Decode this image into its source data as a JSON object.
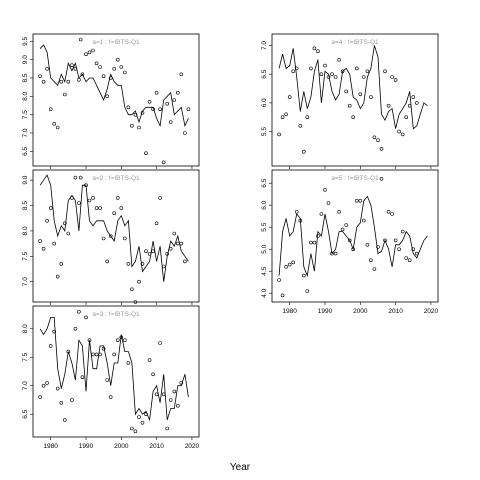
{
  "chart_data": [
    {
      "type": "line",
      "title": "a=1 : f=IBTS-Q1",
      "xlabel": "Year",
      "ylim": [
        6.1,
        9.7
      ],
      "xlim": [
        1975,
        2022
      ],
      "x_ticks": [
        1980,
        1990,
        2000,
        2010,
        2020
      ],
      "y_ticks": [
        6.5,
        7.0,
        7.5,
        8.0,
        8.5,
        9.0,
        9.5
      ],
      "x": [
        1977,
        1978,
        1979,
        1980,
        1981,
        1982,
        1983,
        1984,
        1985,
        1986,
        1987,
        1988,
        1989,
        1990,
        1991,
        1992,
        1993,
        1994,
        1995,
        1996,
        1997,
        1998,
        1999,
        2000,
        2001,
        2002,
        2003,
        2004,
        2005,
        2006,
        2007,
        2008,
        2009,
        2010,
        2011,
        2012,
        2013,
        2014,
        2015,
        2016,
        2017,
        2018,
        2019
      ],
      "line": [
        9.3,
        9.4,
        9.2,
        8.5,
        8.4,
        8.3,
        8.6,
        8.4,
        8.9,
        8.7,
        8.9,
        8.5,
        8.6,
        8.4,
        8.5,
        8.5,
        8.3,
        8.1,
        7.9,
        8.2,
        8.6,
        8.4,
        8.3,
        8.3,
        7.7,
        7.5,
        7.5,
        7.6,
        7.3,
        7.6,
        7.7,
        7.7,
        7.7,
        7.4,
        7.2,
        7.9,
        8.0,
        8.1,
        7.5,
        7.6,
        7.7,
        7.2,
        7.4
      ],
      "points": [
        [
          1977,
          8.55
        ],
        [
          1978,
          8.4
        ],
        [
          1979,
          8.75
        ],
        [
          1980,
          7.65
        ],
        [
          1981,
          7.25
        ],
        [
          1982,
          7.15
        ],
        [
          1983,
          8.4
        ],
        [
          1984,
          8.05
        ],
        [
          1985,
          8.4
        ],
        [
          1986,
          8.85
        ],
        [
          1987,
          8.75
        ],
        [
          1988,
          8.45
        ],
        [
          1988.5,
          9.55
        ],
        [
          1989,
          8.6
        ],
        [
          1990,
          9.15
        ],
        [
          1991,
          9.2
        ],
        [
          1992,
          9.25
        ],
        [
          1993,
          8.9
        ],
        [
          1994,
          8.8
        ],
        [
          1995,
          8.55
        ],
        [
          1996,
          8.0
        ],
        [
          1997,
          8.5
        ],
        [
          1998,
          8.75
        ],
        [
          1999,
          9.0
        ],
        [
          2000,
          8.8
        ],
        [
          2001,
          8.65
        ],
        [
          2002,
          7.7
        ],
        [
          2003,
          7.2
        ],
        [
          2004,
          7.5
        ],
        [
          2005,
          7.15
        ],
        [
          2006,
          7.55
        ],
        [
          2007,
          6.45
        ],
        [
          2008,
          7.85
        ],
        [
          2009,
          7.65
        ],
        [
          2010,
          8.1
        ],
        [
          2011,
          7.65
        ],
        [
          2012,
          6.2
        ],
        [
          2013,
          7.8
        ],
        [
          2014,
          7.3
        ],
        [
          2015,
          7.9
        ],
        [
          2016,
          8.1
        ],
        [
          2017,
          8.6
        ],
        [
          2018,
          7.0
        ],
        [
          2019,
          7.65
        ]
      ]
    },
    {
      "type": "line",
      "title": "a=2 : f=IBTS-Q1",
      "xlabel": "Year",
      "ylim": [
        6.6,
        9.2
      ],
      "xlim": [
        1975,
        2022
      ],
      "x_ticks": [
        1980,
        1990,
        2000,
        2010,
        2020
      ],
      "y_ticks": [
        7.0,
        7.5,
        8.0,
        8.5,
        9.0
      ],
      "x": [
        1977,
        1978,
        1979,
        1980,
        1981,
        1982,
        1983,
        1984,
        1985,
        1986,
        1987,
        1988,
        1989,
        1990,
        1991,
        1992,
        1993,
        1994,
        1995,
        1996,
        1997,
        1998,
        1999,
        2000,
        2001,
        2002,
        2003,
        2004,
        2005,
        2006,
        2007,
        2008,
        2009,
        2010,
        2011,
        2012,
        2013,
        2014,
        2015,
        2016,
        2017,
        2018,
        2019
      ],
      "line": [
        8.9,
        9.0,
        9.1,
        8.9,
        8.2,
        7.9,
        8.1,
        8.0,
        8.6,
        8.7,
        8.6,
        8.0,
        8.9,
        8.9,
        8.2,
        8.1,
        8.2,
        8.2,
        8.2,
        8.0,
        7.9,
        7.8,
        8.2,
        8.3,
        8.1,
        8.2,
        7.3,
        7.4,
        7.7,
        7.2,
        7.3,
        7.4,
        7.8,
        7.4,
        7.7,
        7.0,
        7.5,
        7.8,
        7.7,
        7.9,
        7.6,
        7.5,
        7.4
      ],
      "points": [
        [
          1977,
          7.8
        ],
        [
          1978,
          7.65
        ],
        [
          1979,
          8.2
        ],
        [
          1980,
          8.45
        ],
        [
          1981,
          7.75
        ],
        [
          1982,
          7.1
        ],
        [
          1983,
          7.35
        ],
        [
          1984,
          8.15
        ],
        [
          1985,
          7.95
        ],
        [
          1986,
          8.65
        ],
        [
          1987,
          9.05
        ],
        [
          1988,
          8.55
        ],
        [
          1988.5,
          9.05
        ],
        [
          1990,
          8.9
        ],
        [
          1991,
          8.6
        ],
        [
          1992,
          8.65
        ],
        [
          1993,
          8.45
        ],
        [
          1994,
          8.45
        ],
        [
          1995,
          7.85
        ],
        [
          1996,
          7.4
        ],
        [
          1997,
          7.9
        ],
        [
          1998,
          8.35
        ],
        [
          1999,
          8.65
        ],
        [
          2000,
          8.45
        ],
        [
          2001,
          7.85
        ],
        [
          2002,
          7.35
        ],
        [
          2003,
          6.85
        ],
        [
          2004,
          6.6
        ],
        [
          2005,
          7.0
        ],
        [
          2006,
          7.35
        ],
        [
          2007,
          7.6
        ],
        [
          2008,
          7.55
        ],
        [
          2009,
          7.6
        ],
        [
          2010,
          8.15
        ],
        [
          2011,
          8.65
        ],
        [
          2012,
          7.3
        ],
        [
          2013,
          7.55
        ],
        [
          2014,
          7.65
        ],
        [
          2015,
          7.95
        ],
        [
          2016,
          7.75
        ],
        [
          2017,
          7.75
        ],
        [
          2018,
          7.4
        ]
      ]
    },
    {
      "type": "line",
      "title": "a=3 : f=IBTS-Q1",
      "xlabel": "Year",
      "ylim": [
        6.1,
        8.4
      ],
      "xlim": [
        1975,
        2022
      ],
      "x_ticks": [
        1980,
        1990,
        2000,
        2010,
        2020
      ],
      "y_ticks": [
        6.5,
        7.0,
        7.5,
        8.0
      ],
      "x": [
        1977,
        1978,
        1979,
        1980,
        1981,
        1982,
        1983,
        1984,
        1985,
        1986,
        1987,
        1988,
        1989,
        1990,
        1991,
        1992,
        1993,
        1994,
        1995,
        1996,
        1997,
        1998,
        1999,
        2000,
        2001,
        2002,
        2003,
        2004,
        2005,
        2006,
        2007,
        2008,
        2009,
        2010,
        2011,
        2012,
        2013,
        2014,
        2015,
        2016,
        2017,
        2018,
        2019
      ],
      "line": [
        8.0,
        7.9,
        8.0,
        8.2,
        8.2,
        7.3,
        6.95,
        7.2,
        7.6,
        7.4,
        7.1,
        7.8,
        7.7,
        6.9,
        7.8,
        7.3,
        7.3,
        7.7,
        7.7,
        7.4,
        7.0,
        7.4,
        7.4,
        7.9,
        7.6,
        7.6,
        7.4,
        6.5,
        6.6,
        6.5,
        6.55,
        6.4,
        6.9,
        7.0,
        6.7,
        7.2,
        6.4,
        6.6,
        6.6,
        7.0,
        7.0,
        7.2,
        6.8
      ],
      "points": [
        [
          1977,
          6.8
        ],
        [
          1978,
          7.0
        ],
        [
          1979,
          7.05
        ],
        [
          1980,
          7.7
        ],
        [
          1981,
          7.95
        ],
        [
          1982,
          6.95
        ],
        [
          1983,
          6.7
        ],
        [
          1984,
          6.4
        ],
        [
          1985,
          7.6
        ],
        [
          1986,
          6.75
        ],
        [
          1987,
          8.0
        ],
        [
          1988,
          8.3
        ],
        [
          1989,
          7.15
        ],
        [
          1990,
          8.2
        ],
        [
          1991,
          7.8
        ],
        [
          1992,
          7.55
        ],
        [
          1993,
          7.55
        ],
        [
          1994,
          7.55
        ],
        [
          1995,
          7.65
        ],
        [
          1996,
          7.1
        ],
        [
          1997,
          6.8
        ],
        [
          1998,
          7.55
        ],
        [
          1999,
          7.8
        ],
        [
          2000,
          7.85
        ],
        [
          2001,
          7.8
        ],
        [
          2002,
          7.4
        ],
        [
          2003,
          6.25
        ],
        [
          2004,
          6.2
        ],
        [
          2005,
          6.45
        ],
        [
          2006,
          6.35
        ],
        [
          2007,
          6.5
        ],
        [
          2008,
          7.45
        ],
        [
          2009,
          7.2
        ],
        [
          2010,
          6.85
        ],
        [
          2011,
          7.75
        ],
        [
          2012,
          6.85
        ],
        [
          2013,
          6.25
        ],
        [
          2014,
          6.75
        ],
        [
          2015,
          6.9
        ],
        [
          2016,
          6.65
        ],
        [
          2017,
          7.05
        ]
      ]
    },
    {
      "type": "line",
      "title": "a=4 : f=IBTS-Q1",
      "xlabel": "Year",
      "ylim": [
        4.9,
        7.2
      ],
      "xlim": [
        1975,
        2022
      ],
      "x_ticks": [
        1980,
        1990,
        2000,
        2010,
        2020
      ],
      "y_ticks": [
        5.5,
        6.0,
        6.5,
        7.0
      ],
      "x": [
        1977,
        1978,
        1979,
        1980,
        1981,
        1982,
        1983,
        1984,
        1985,
        1986,
        1987,
        1988,
        1989,
        1990,
        1991,
        1992,
        1993,
        1994,
        1995,
        1996,
        1997,
        1998,
        1999,
        2000,
        2001,
        2002,
        2003,
        2004,
        2005,
        2006,
        2007,
        2008,
        2009,
        2010,
        2011,
        2012,
        2013,
        2014,
        2015,
        2016,
        2017,
        2018,
        2019
      ],
      "line": [
        6.6,
        6.85,
        6.6,
        6.65,
        6.95,
        6.45,
        5.85,
        6.2,
        5.9,
        6.1,
        6.55,
        6.75,
        6.0,
        6.55,
        6.5,
        6.2,
        6.05,
        6.15,
        6.55,
        6.6,
        6.5,
        6.1,
        6.05,
        5.9,
        6.0,
        6.45,
        6.6,
        7.0,
        6.8,
        5.8,
        5.7,
        5.85,
        5.9,
        5.55,
        5.8,
        5.9,
        6.0,
        6.2,
        5.55,
        5.6,
        5.8,
        6.0,
        5.95
      ],
      "points": [
        [
          1977,
          5.45
        ],
        [
          1978,
          5.75
        ],
        [
          1979,
          5.8
        ],
        [
          1980,
          6.1
        ],
        [
          1981,
          6.55
        ],
        [
          1982,
          6.6
        ],
        [
          1983,
          5.6
        ],
        [
          1984,
          5.15
        ],
        [
          1985,
          5.75
        ],
        [
          1986,
          6.6
        ],
        [
          1987,
          6.95
        ],
        [
          1988,
          6.9
        ],
        [
          1989,
          6.5
        ],
        [
          1990,
          6.65
        ],
        [
          1991,
          6.45
        ],
        [
          1992,
          6.5
        ],
        [
          1993,
          6.45
        ],
        [
          1994,
          6.75
        ],
        [
          1995,
          6.55
        ],
        [
          1996,
          6.2
        ],
        [
          1997,
          5.95
        ],
        [
          1998,
          5.75
        ],
        [
          1999,
          6.6
        ],
        [
          2000,
          6.15
        ],
        [
          2001,
          6.45
        ],
        [
          2002,
          6.55
        ],
        [
          2003,
          6.1
        ],
        [
          2004,
          5.4
        ],
        [
          2005,
          5.35
        ],
        [
          2006,
          5.2
        ],
        [
          2007,
          6.55
        ],
        [
          2008,
          5.95
        ],
        [
          2009,
          6.45
        ],
        [
          2010,
          6.4
        ],
        [
          2011,
          5.5
        ],
        [
          2012,
          5.45
        ],
        [
          2013,
          5.75
        ],
        [
          2014,
          5.95
        ],
        [
          2015,
          6.1
        ],
        [
          2016,
          6.0
        ]
      ]
    },
    {
      "type": "line",
      "title": "a=5 : f=IBTS-Q1",
      "xlabel": "Year",
      "ylim": [
        3.8,
        6.8
      ],
      "xlim": [
        1975,
        2022
      ],
      "x_ticks": [
        1980,
        1990,
        2000,
        2010,
        2020
      ],
      "y_ticks": [
        4.0,
        4.5,
        5.0,
        5.5,
        6.0,
        6.5
      ],
      "x": [
        1977,
        1978,
        1979,
        1980,
        1981,
        1982,
        1983,
        1984,
        1985,
        1986,
        1987,
        1988,
        1989,
        1990,
        1991,
        1992,
        1993,
        1994,
        1995,
        1996,
        1997,
        1998,
        1999,
        2000,
        2001,
        2002,
        2003,
        2004,
        2005,
        2006,
        2007,
        2008,
        2009,
        2010,
        2011,
        2012,
        2013,
        2014,
        2015,
        2016,
        2017,
        2018,
        2019
      ],
      "line": [
        4.4,
        5.4,
        5.7,
        5.3,
        5.4,
        5.8,
        5.7,
        4.6,
        4.4,
        4.9,
        4.5,
        5.4,
        5.3,
        5.8,
        5.4,
        4.9,
        5.0,
        5.4,
        5.4,
        5.3,
        5.2,
        5.0,
        5.5,
        5.6,
        6.1,
        6.2,
        6.0,
        5.5,
        4.9,
        4.95,
        5.2,
        5.0,
        4.6,
        5.1,
        5.1,
        5.2,
        5.4,
        5.3,
        4.9,
        4.8,
        5.0,
        5.2,
        5.3
      ],
      "points": [
        [
          1977,
          4.3
        ],
        [
          1978,
          3.95
        ],
        [
          1979,
          4.6
        ],
        [
          1980,
          4.65
        ],
        [
          1981,
          4.7
        ],
        [
          1982,
          5.85
        ],
        [
          1983,
          5.65
        ],
        [
          1984,
          4.4
        ],
        [
          1985,
          4.05
        ],
        [
          1986,
          5.15
        ],
        [
          1987,
          5.15
        ],
        [
          1988,
          5.3
        ],
        [
          1989,
          5.8
        ],
        [
          1990,
          6.35
        ],
        [
          1991,
          6.05
        ],
        [
          1992,
          4.9
        ],
        [
          1993,
          4.9
        ],
        [
          1994,
          5.85
        ],
        [
          1995,
          5.45
        ],
        [
          1996,
          5.55
        ],
        [
          1997,
          5.2
        ],
        [
          1998,
          5.0
        ],
        [
          1999,
          6.1
        ],
        [
          2000,
          6.1
        ],
        [
          2001,
          5.65
        ],
        [
          2002,
          5.1
        ],
        [
          2003,
          4.75
        ],
        [
          2004,
          4.55
        ],
        [
          2005,
          5.05
        ],
        [
          2006,
          6.6
        ],
        [
          2007,
          5.2
        ],
        [
          2008,
          5.85
        ],
        [
          2009,
          5.8
        ],
        [
          2010,
          5.2
        ],
        [
          2011,
          5.0
        ],
        [
          2012,
          5.4
        ],
        [
          2013,
          4.8
        ],
        [
          2014,
          4.75
        ],
        [
          2015,
          5.0
        ],
        [
          2016,
          4.9
        ]
      ]
    }
  ],
  "figure": {
    "xlabel": "Year"
  }
}
